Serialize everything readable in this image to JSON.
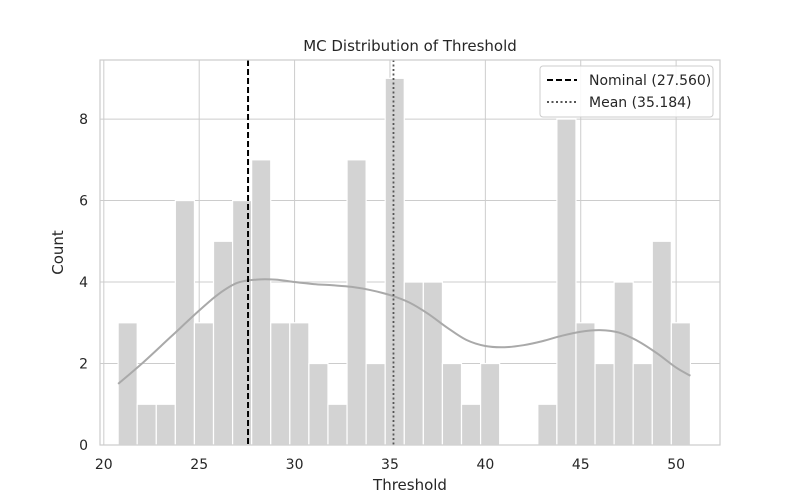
{
  "chart_data": {
    "type": "histogram",
    "title": "MC Distribution of Threshold",
    "xlabel": "Threshold",
    "ylabel": "Count",
    "xlim": [
      19.8,
      52.3
    ],
    "ylim": [
      0,
      9.45
    ],
    "xticks": [
      20,
      25,
      30,
      35,
      40,
      45,
      50
    ],
    "yticks": [
      0,
      2,
      4,
      6,
      8
    ],
    "grid": true,
    "bins": {
      "start": 20.75,
      "width": 1.0,
      "counts": [
        3,
        1,
        1,
        6,
        3,
        5,
        6,
        7,
        3,
        3,
        2,
        1,
        7,
        2,
        9,
        4,
        4,
        2,
        1,
        2,
        0,
        0,
        1,
        8,
        3,
        2,
        4,
        2,
        5,
        3
      ]
    },
    "kde": {
      "x": [
        20.75,
        22,
        23.5,
        25,
        26,
        27,
        28,
        29,
        30,
        31,
        32,
        33,
        34,
        35,
        36,
        37,
        38,
        39,
        40,
        41,
        42,
        43,
        44,
        45,
        46,
        47,
        48,
        49,
        50,
        50.75
      ],
      "y": [
        1.5,
        2.0,
        2.65,
        3.3,
        3.7,
        3.98,
        4.06,
        4.06,
        4.0,
        3.95,
        3.92,
        3.88,
        3.8,
        3.68,
        3.5,
        3.22,
        2.88,
        2.58,
        2.43,
        2.4,
        2.45,
        2.55,
        2.68,
        2.78,
        2.82,
        2.76,
        2.55,
        2.25,
        1.9,
        1.7
      ]
    },
    "lines": [
      {
        "name": "Nominal (27.560)",
        "x": 27.56,
        "style": "dashed",
        "color": "#000000"
      },
      {
        "name": "Mean (35.184)",
        "x": 35.184,
        "style": "dotted",
        "color": "#555555"
      }
    ],
    "legend_position": "top-right",
    "colors": {
      "bar": "#d3d3d3",
      "kde": "#a9a9a9",
      "grid": "#cccccc",
      "spine": "#cccccc"
    }
  }
}
